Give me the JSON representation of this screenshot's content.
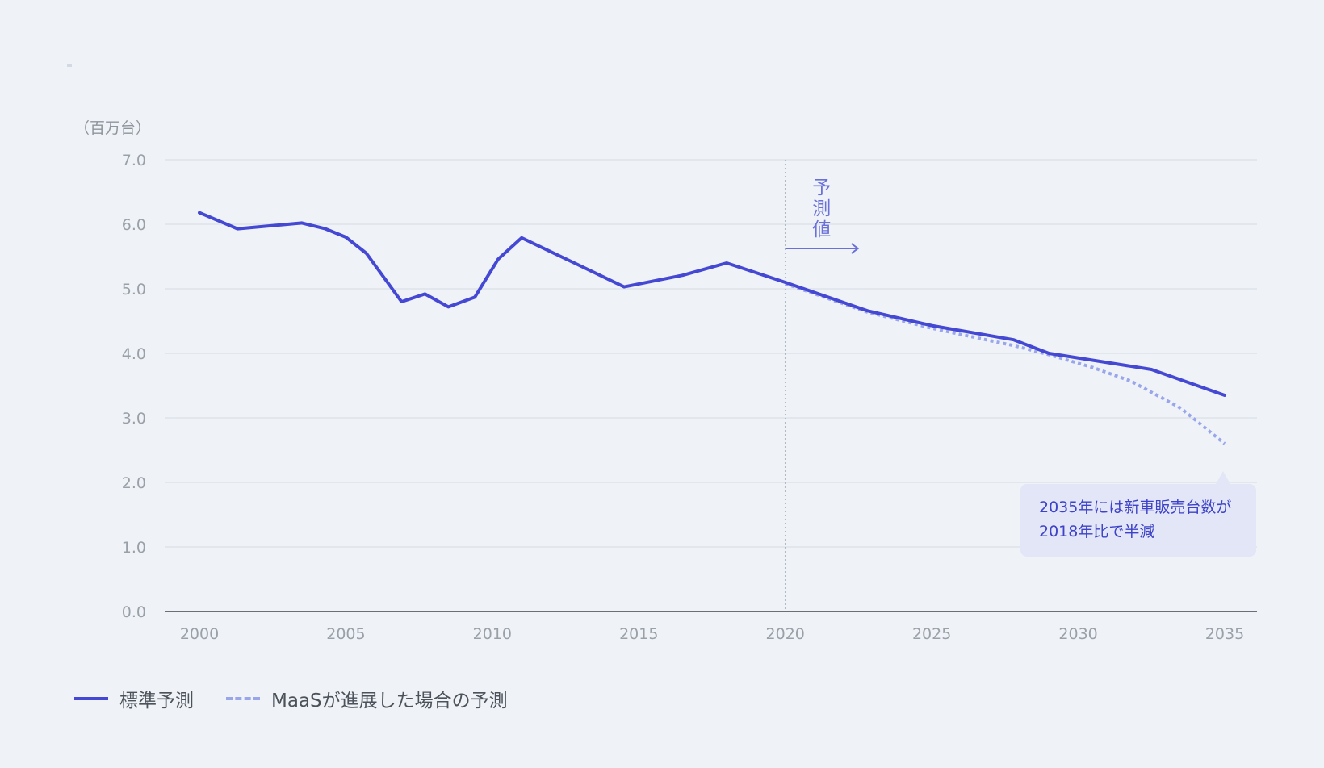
{
  "chart_data": {
    "type": "line",
    "ylabel": "（百万台）",
    "ylim": [
      0,
      7
    ],
    "yticks": [
      "0.0",
      "1.0",
      "2.0",
      "3.0",
      "4.0",
      "5.0",
      "6.0",
      "7.0"
    ],
    "xlim": [
      2000,
      2035
    ],
    "xticks": [
      "2000",
      "2005",
      "2010",
      "2015",
      "2020",
      "2025",
      "2030",
      "2035"
    ],
    "grid": true,
    "legend_position": "bottom-left",
    "series": [
      {
        "name": "標準予測",
        "style": "solid",
        "color": "#4448d2",
        "x": [
          2000,
          2001.3,
          2003.5,
          2004.3,
          2005.0,
          2005.7,
          2006.9,
          2007.7,
          2008.5,
          2009.4,
          2010.2,
          2011.0,
          2012.8,
          2014.5,
          2016.5,
          2018.0,
          2020.0,
          2022.8,
          2025.0,
          2027.8,
          2029.0,
          2032.5,
          2035.0
        ],
        "y": [
          6.18,
          5.93,
          6.02,
          5.93,
          5.8,
          5.55,
          4.8,
          4.92,
          4.72,
          4.87,
          5.46,
          5.79,
          5.4,
          5.03,
          5.21,
          5.4,
          5.1,
          4.66,
          4.43,
          4.21,
          4.0,
          3.75,
          3.35
        ]
      },
      {
        "name": "MaaSが進展した場合の予測",
        "style": "dotted",
        "color": "#9aa6ea",
        "x": [
          2020.0,
          2022.8,
          2025.0,
          2027.8,
          2029.0,
          2030.5,
          2031.8,
          2033.5,
          2035.0
        ],
        "y": [
          5.08,
          4.64,
          4.39,
          4.12,
          3.98,
          3.78,
          3.57,
          3.15,
          2.6
        ]
      }
    ],
    "forecast_marker": {
      "x": 2020,
      "label_chars": [
        "予",
        "測",
        "値"
      ]
    },
    "callout": {
      "lines": [
        "2035年には新車販売台数が",
        "2018年比で半減"
      ]
    }
  },
  "colors": {
    "background": "#eff3f8",
    "primary": "#4448d2",
    "secondary": "#9aa6ea",
    "grid": "#dee3e9",
    "axis": "#6b7078",
    "tick_text": "#9aa0a8",
    "marker_line": "#b4bac2",
    "annotation": "#6a70d8",
    "callout_bg": "#e2e6f6",
    "callout_text": "#3d42c8"
  }
}
